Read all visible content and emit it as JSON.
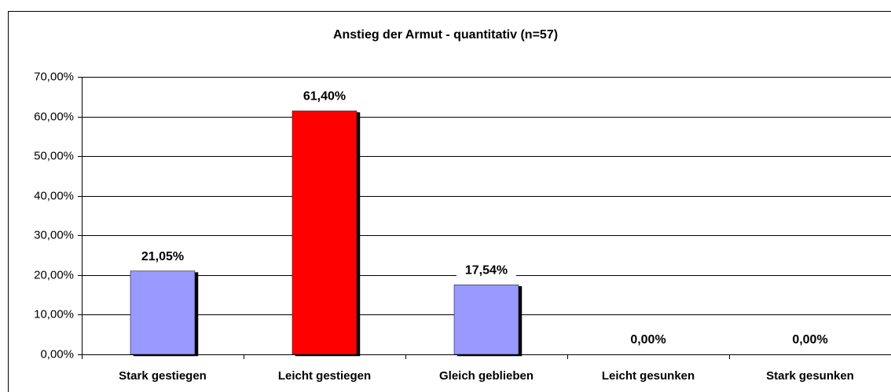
{
  "chart_data": {
    "type": "bar",
    "title": "Anstieg der Armut - quantitativ (n=57)",
    "categories": [
      "Stark gestiegen",
      "Leicht gestiegen",
      "Gleich geblieben",
      "Leicht gesunken",
      "Stark gesunken"
    ],
    "values": [
      21.05,
      61.4,
      17.54,
      0,
      0
    ],
    "value_labels": [
      "21,05%",
      "61,40%",
      "17,54%",
      "0,00%",
      "0,00%"
    ],
    "colors": [
      "#9999ff",
      "#ff0000",
      "#9999ff",
      "#9999ff",
      "#9999ff"
    ],
    "ylim": [
      0,
      70
    ],
    "yticks": [
      {
        "value": 0,
        "label": "0,00%"
      },
      {
        "value": 10,
        "label": "10,00%"
      },
      {
        "value": 20,
        "label": "20,00%"
      },
      {
        "value": 30,
        "label": "30,00%"
      },
      {
        "value": 40,
        "label": "40,00%"
      },
      {
        "value": 50,
        "label": "50,00%"
      },
      {
        "value": 60,
        "label": "60,00%"
      },
      {
        "value": 70,
        "label": "70,00%"
      }
    ],
    "grid": true
  }
}
